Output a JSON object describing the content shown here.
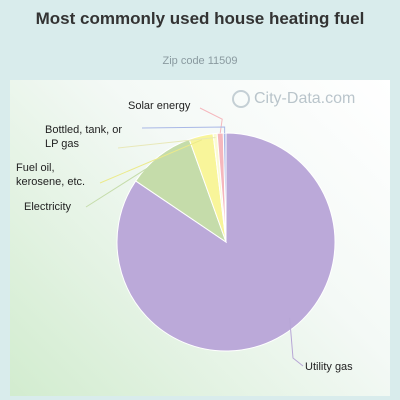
{
  "title": "Most commonly used house heating fuel",
  "subtitle": "Zip code 11509",
  "watermark": "City-Data.com",
  "chart_data": {
    "type": "pie",
    "slices": [
      {
        "label": "Utility gas",
        "value": 84.8,
        "color": "#bba9d9"
      },
      {
        "label": "Electricity",
        "value": 10.1,
        "color": "#c5dcaa"
      },
      {
        "label": "Fuel oil, kerosene, etc.",
        "value": 3.6,
        "color": "#f8f59a"
      },
      {
        "label": "Bottled, tank, or LP gas",
        "value": 0.6,
        "color": "#fbfbd2"
      },
      {
        "label": "Solar energy",
        "value": 0.9,
        "color": "#f5b7bd"
      }
    ],
    "extra_slice": {
      "value": 0.4,
      "color": "#a9b8e6"
    }
  }
}
